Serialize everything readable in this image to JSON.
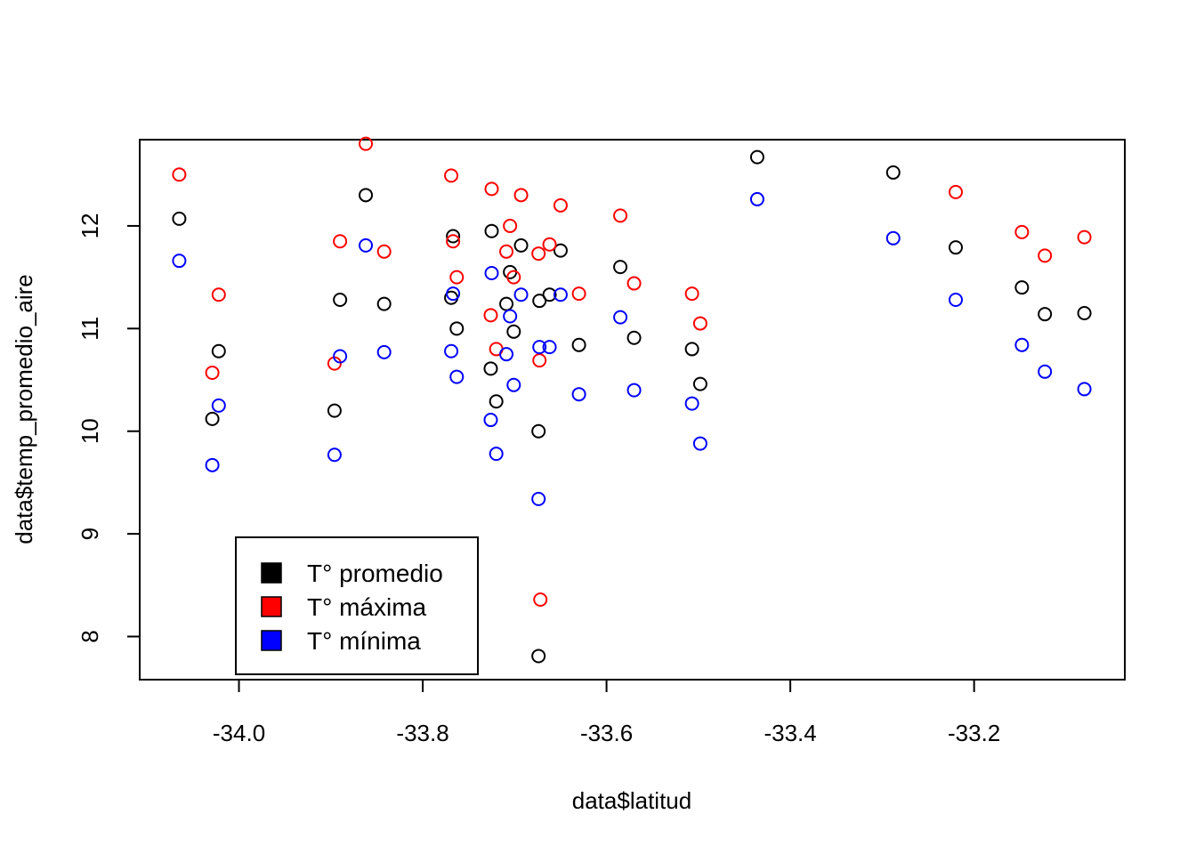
{
  "chart_data": {
    "type": "scatter",
    "xlabel": "data$latitud",
    "ylabel": "data$temp_promedio_aire",
    "xlim": [
      -34.108,
      -33.036
    ],
    "ylim": [
      7.58,
      12.84
    ],
    "x_ticks": [
      -34.0,
      -33.8,
      -33.6,
      -33.4,
      -33.2
    ],
    "x_tick_labels": [
      "-34.0",
      "-33.8",
      "-33.6",
      "-33.4",
      "-33.2"
    ],
    "y_ticks": [
      8,
      9,
      10,
      11,
      12
    ],
    "y_tick_labels": [
      "8",
      "9",
      "10",
      "11",
      "12"
    ],
    "grid": false,
    "legend_position": "bottom-left",
    "series": [
      {
        "name": "T° promedio",
        "color": "#000000",
        "points": [
          [
            -34.065,
            12.07
          ],
          [
            -34.029,
            10.12
          ],
          [
            -34.022,
            10.78
          ],
          [
            -33.896,
            10.2
          ],
          [
            -33.89,
            11.28
          ],
          [
            -33.862,
            12.3
          ],
          [
            -33.842,
            11.24
          ],
          [
            -33.769,
            11.3
          ],
          [
            -33.767,
            11.9
          ],
          [
            -33.763,
            11.0
          ],
          [
            -33.726,
            10.61
          ],
          [
            -33.725,
            11.95
          ],
          [
            -33.72,
            10.29
          ],
          [
            -33.709,
            11.24
          ],
          [
            -33.705,
            11.55
          ],
          [
            -33.701,
            10.97
          ],
          [
            -33.693,
            11.81
          ],
          [
            -33.674,
            10.0
          ],
          [
            -33.673,
            11.27
          ],
          [
            -33.662,
            11.33
          ],
          [
            -33.65,
            11.76
          ],
          [
            -33.63,
            10.84
          ],
          [
            -33.585,
            11.6
          ],
          [
            -33.57,
            10.91
          ],
          [
            -33.507,
            10.8
          ],
          [
            -33.498,
            10.46
          ],
          [
            -33.436,
            12.67
          ],
          [
            -33.288,
            12.52
          ],
          [
            -33.22,
            11.79
          ],
          [
            -33.148,
            11.4
          ],
          [
            -33.123,
            11.14
          ],
          [
            -33.08,
            11.15
          ],
          [
            -33.674,
            7.81
          ]
        ]
      },
      {
        "name": "T° máxima",
        "color": "#ff0000",
        "points": [
          [
            -34.065,
            12.5
          ],
          [
            -34.029,
            10.57
          ],
          [
            -34.022,
            11.33
          ],
          [
            -33.896,
            10.66
          ],
          [
            -33.89,
            11.85
          ],
          [
            -33.862,
            12.8
          ],
          [
            -33.842,
            11.75
          ],
          [
            -33.769,
            12.49
          ],
          [
            -33.767,
            11.85
          ],
          [
            -33.763,
            11.5
          ],
          [
            -33.726,
            11.13
          ],
          [
            -33.725,
            12.36
          ],
          [
            -33.72,
            10.8
          ],
          [
            -33.709,
            11.75
          ],
          [
            -33.705,
            12.0
          ],
          [
            -33.701,
            11.5
          ],
          [
            -33.693,
            12.3
          ],
          [
            -33.674,
            11.73
          ],
          [
            -33.673,
            10.69
          ],
          [
            -33.662,
            11.82
          ],
          [
            -33.65,
            12.2
          ],
          [
            -33.63,
            11.34
          ],
          [
            -33.585,
            12.1
          ],
          [
            -33.57,
            11.44
          ],
          [
            -33.507,
            11.34
          ],
          [
            -33.498,
            11.05
          ],
          [
            -33.22,
            12.33
          ],
          [
            -33.148,
            11.94
          ],
          [
            -33.123,
            11.71
          ],
          [
            -33.08,
            11.89
          ],
          [
            -33.672,
            8.36
          ]
        ]
      },
      {
        "name": "T° mínima",
        "color": "#0000ff",
        "points": [
          [
            -34.065,
            11.66
          ],
          [
            -34.029,
            9.67
          ],
          [
            -34.022,
            10.25
          ],
          [
            -33.896,
            9.77
          ],
          [
            -33.89,
            10.73
          ],
          [
            -33.862,
            11.81
          ],
          [
            -33.842,
            10.77
          ],
          [
            -33.769,
            10.78
          ],
          [
            -33.767,
            11.34
          ],
          [
            -33.763,
            10.53
          ],
          [
            -33.726,
            10.11
          ],
          [
            -33.725,
            11.54
          ],
          [
            -33.72,
            9.78
          ],
          [
            -33.709,
            10.75
          ],
          [
            -33.705,
            11.12
          ],
          [
            -33.701,
            10.45
          ],
          [
            -33.693,
            11.33
          ],
          [
            -33.674,
            9.34
          ],
          [
            -33.673,
            10.82
          ],
          [
            -33.662,
            10.82
          ],
          [
            -33.65,
            11.33
          ],
          [
            -33.63,
            10.36
          ],
          [
            -33.585,
            11.11
          ],
          [
            -33.57,
            10.4
          ],
          [
            -33.507,
            10.27
          ],
          [
            -33.498,
            9.88
          ],
          [
            -33.436,
            12.26
          ],
          [
            -33.288,
            11.88
          ],
          [
            -33.22,
            11.28
          ],
          [
            -33.148,
            10.84
          ],
          [
            -33.123,
            10.58
          ],
          [
            -33.08,
            10.41
          ]
        ]
      }
    ]
  }
}
